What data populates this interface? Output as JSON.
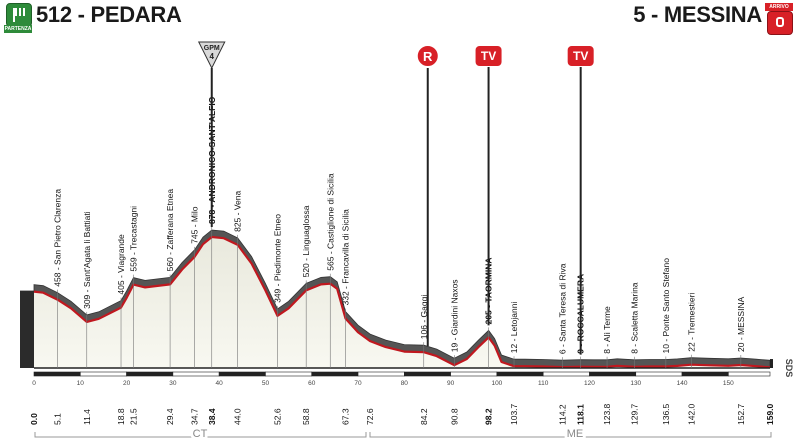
{
  "start": {
    "elevation": "512",
    "name": "PEDARA",
    "label": "512 - PEDARA",
    "badge": "PARTENZA",
    "color": "#2e8b3a"
  },
  "finish": {
    "elevation": "5",
    "name": "MESSINA",
    "label": "5 - MESSINA",
    "badge": "ARRIVO",
    "color": "#d82027"
  },
  "markers": {
    "gpm": {
      "label": "GPM",
      "category": "4"
    },
    "sprint": {
      "label": "R"
    },
    "tv1": {
      "label": "TV"
    },
    "tv2": {
      "label": "TV"
    }
  },
  "provinces": [
    {
      "label": "CT"
    },
    {
      "label": "ME"
    }
  ],
  "side_logo": "SDS",
  "km_scale": [
    0,
    10,
    20,
    30,
    40,
    50,
    60,
    70,
    80,
    90,
    100,
    110,
    120,
    130,
    140,
    150
  ],
  "chart_data": {
    "type": "area",
    "total_km": 159.0,
    "places": [
      {
        "km": 0.0,
        "label": "0.0",
        "elev_label": "",
        "bold": true
      },
      {
        "km": 5.1,
        "label": "5.1",
        "elev_label": "458 - San Pietro Clarenza",
        "bold": false
      },
      {
        "km": 11.4,
        "label": "11.4",
        "elev_label": "309 - Sant'Agata li Battiati",
        "bold": false
      },
      {
        "km": 18.8,
        "label": "18.8",
        "elev_label": "405 - Viagrande",
        "bold": false
      },
      {
        "km": 21.5,
        "label": "21.5",
        "elev_label": "559 - Trecastagni",
        "bold": false
      },
      {
        "km": 29.4,
        "label": "29.4",
        "elev_label": "560 - Zafferana Etnea",
        "bold": false
      },
      {
        "km": 34.7,
        "label": "34.7",
        "elev_label": "745 - Milo",
        "bold": false
      },
      {
        "km": 38.4,
        "label": "38.4",
        "elev_label": "878 - ANDRONICO-SANT'ALFIO",
        "bold": true
      },
      {
        "km": 44.0,
        "label": "44.0",
        "elev_label": "825 - Vena",
        "bold": false
      },
      {
        "km": 52.6,
        "label": "52.6",
        "elev_label": "349 - Piedimonte Etneo",
        "bold": false
      },
      {
        "km": 58.8,
        "label": "58.8",
        "elev_label": "520 - Linguaglossa",
        "bold": false
      },
      {
        "km": 64.0,
        "label": "",
        "elev_label": "565 - Castiglione di Sicilia",
        "bold": false
      },
      {
        "km": 67.3,
        "label": "67.3",
        "elev_label": "332 - Francavilla di Sicilia",
        "bold": false
      },
      {
        "km": 72.6,
        "label": "72.6",
        "elev_label": "",
        "bold": false
      },
      {
        "km": 84.2,
        "label": "84.2",
        "elev_label": "106 - Gaggi",
        "bold": false
      },
      {
        "km": 90.8,
        "label": "90.8",
        "elev_label": "19 - Giardini Naxos",
        "bold": false
      },
      {
        "km": 98.2,
        "label": "98.2",
        "elev_label": "205 - TAORMINA",
        "bold": true
      },
      {
        "km": 103.7,
        "label": "103.7",
        "elev_label": "12 - Letojanni",
        "bold": false
      },
      {
        "km": 114.2,
        "label": "114.2",
        "elev_label": "6 - Santa Teresa di Riva",
        "bold": false
      },
      {
        "km": 118.1,
        "label": "118.1",
        "elev_label": "9 - ROCCALUMERA",
        "bold": true
      },
      {
        "km": 123.8,
        "label": "123.8",
        "elev_label": "8 - Alì Terme",
        "bold": false
      },
      {
        "km": 129.7,
        "label": "129.7",
        "elev_label": "8 - Scaletta Marina",
        "bold": false
      },
      {
        "km": 136.5,
        "label": "136.5",
        "elev_label": "10 - Ponte Santo Stefano",
        "bold": false
      },
      {
        "km": 142.0,
        "label": "142.0",
        "elev_label": "22 - Tremestieri",
        "bold": false
      },
      {
        "km": 152.7,
        "label": "152.7",
        "elev_label": "20 - MESSINA",
        "bold": false
      },
      {
        "km": 159.0,
        "label": "159.0",
        "elev_label": "",
        "bold": true
      }
    ],
    "profile": [
      [
        0,
        512
      ],
      [
        2,
        505
      ],
      [
        5.1,
        458
      ],
      [
        8,
        400
      ],
      [
        11.4,
        309
      ],
      [
        14,
        330
      ],
      [
        18.8,
        405
      ],
      [
        20,
        470
      ],
      [
        21.5,
        559
      ],
      [
        24,
        540
      ],
      [
        29.4,
        560
      ],
      [
        32,
        660
      ],
      [
        34.7,
        745
      ],
      [
        36.5,
        830
      ],
      [
        38.4,
        878
      ],
      [
        41,
        870
      ],
      [
        44,
        825
      ],
      [
        47,
        700
      ],
      [
        50,
        520
      ],
      [
        52.6,
        349
      ],
      [
        55,
        400
      ],
      [
        58.8,
        520
      ],
      [
        62,
        560
      ],
      [
        64,
        565
      ],
      [
        65.5,
        530
      ],
      [
        67.3,
        332
      ],
      [
        70,
        240
      ],
      [
        72.6,
        180
      ],
      [
        76,
        140
      ],
      [
        80,
        110
      ],
      [
        84.2,
        106
      ],
      [
        87,
        80
      ],
      [
        90.8,
        19
      ],
      [
        93.5,
        60
      ],
      [
        96,
        140
      ],
      [
        98.2,
        205
      ],
      [
        99.5,
        150
      ],
      [
        101,
        40
      ],
      [
        103.7,
        12
      ],
      [
        106,
        12
      ],
      [
        110,
        10
      ],
      [
        114.2,
        6
      ],
      [
        118.1,
        9
      ],
      [
        121,
        8
      ],
      [
        123.8,
        8
      ],
      [
        126,
        15
      ],
      [
        129.7,
        8
      ],
      [
        133,
        10
      ],
      [
        136.5,
        10
      ],
      [
        139,
        14
      ],
      [
        142,
        22
      ],
      [
        146,
        18
      ],
      [
        150,
        15
      ],
      [
        152.7,
        20
      ],
      [
        156,
        12
      ],
      [
        159,
        5
      ]
    ],
    "markers_km": {
      "gpm": 38.4,
      "sprint": 84.2,
      "tv1": 98.2,
      "tv2": 118.1
    }
  }
}
